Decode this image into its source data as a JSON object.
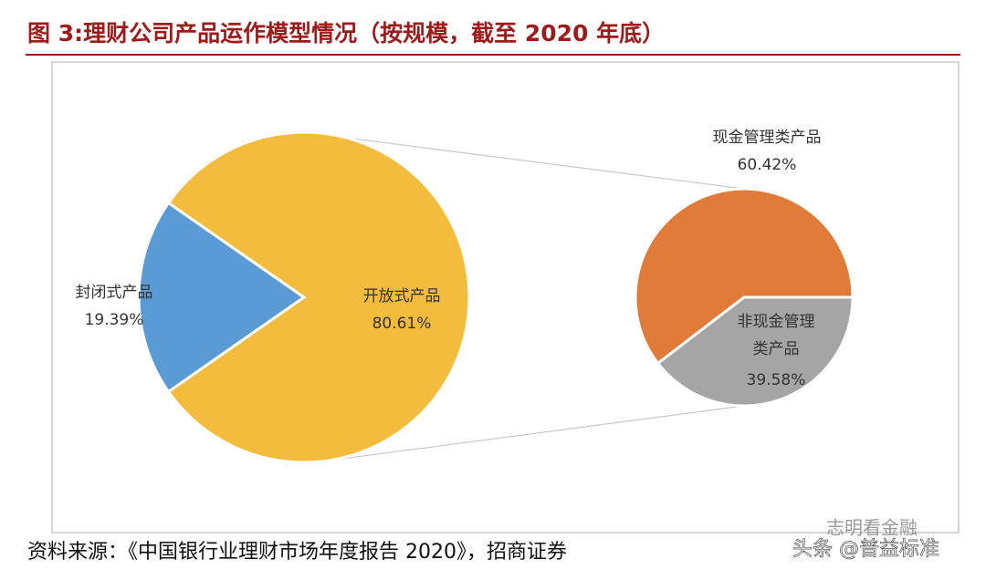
{
  "chart_data": [
    {
      "type": "pie",
      "title": "图 3:理财公司产品运作模型情况（按规模，截至 2020 年底）",
      "categories": [
        "封闭式产品",
        "开放式产品"
      ],
      "values": [
        19.39,
        80.61
      ],
      "value_labels": [
        "19.39%",
        "80.61%"
      ],
      "colors": [
        "#5b9bd5",
        "#f4bc3c"
      ]
    },
    {
      "type": "pie",
      "categories": [
        "现金管理类产品",
        "非现金管理类产品"
      ],
      "values": [
        60.42,
        39.58
      ],
      "value_labels": [
        "60.42%",
        "39.58%"
      ],
      "colors": [
        "#e07b39",
        "#a5a5a5"
      ]
    }
  ],
  "source": "资料来源：《中国银行业理财市场年度报告 2020》，招商证券",
  "watermark": [
    "志明看金融",
    "头条 @普益标准"
  ]
}
